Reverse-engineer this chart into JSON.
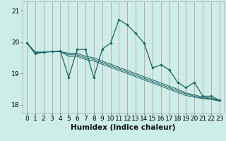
{
  "xlabel": "Humidex (Indice chaleur)",
  "bg_color": "#cceee8",
  "grid_color_v": "#e8b0b0",
  "grid_color_h": "#cceee8",
  "line_color": "#1a6666",
  "marker_color": "#1a6666",
  "x_values": [
    0,
    1,
    2,
    3,
    4,
    5,
    6,
    7,
    8,
    9,
    10,
    11,
    12,
    13,
    14,
    15,
    16,
    17,
    18,
    19,
    20,
    21,
    22,
    23
  ],
  "series_main": [
    19.98,
    19.63,
    19.68,
    19.7,
    19.72,
    18.88,
    19.77,
    19.77,
    18.87,
    19.78,
    19.97,
    20.72,
    20.55,
    20.28,
    19.97,
    19.18,
    19.28,
    19.12,
    18.72,
    18.55,
    18.72,
    18.28,
    18.28,
    18.15
  ],
  "series_trend": [
    [
      19.98,
      19.68,
      19.68,
      19.7,
      19.7,
      19.55,
      19.55,
      19.45,
      19.4,
      19.3,
      19.2,
      19.1,
      19.0,
      18.9,
      18.8,
      18.7,
      18.6,
      18.5,
      18.4,
      18.3,
      18.25,
      18.2,
      18.18,
      18.12
    ],
    [
      19.98,
      19.68,
      19.68,
      19.7,
      19.7,
      19.6,
      19.6,
      19.5,
      19.45,
      19.35,
      19.25,
      19.15,
      19.05,
      18.95,
      18.85,
      18.75,
      18.65,
      18.55,
      18.45,
      18.35,
      18.28,
      18.22,
      18.2,
      18.13
    ],
    [
      19.98,
      19.68,
      19.68,
      19.7,
      19.7,
      19.65,
      19.65,
      19.55,
      19.5,
      19.4,
      19.3,
      19.2,
      19.1,
      19.0,
      18.9,
      18.8,
      18.7,
      18.6,
      18.5,
      18.38,
      18.32,
      18.25,
      18.22,
      18.14
    ]
  ],
  "ylim": [
    17.75,
    21.3
  ],
  "xlim": [
    -0.5,
    23.5
  ],
  "yticks": [
    18,
    19,
    20,
    21
  ],
  "xticks": [
    0,
    1,
    2,
    3,
    4,
    5,
    6,
    7,
    8,
    9,
    10,
    11,
    12,
    13,
    14,
    15,
    16,
    17,
    18,
    19,
    20,
    21,
    22,
    23
  ],
  "tick_fontsize": 6.5,
  "xlabel_fontsize": 7.5,
  "xlabel_fontweight": "bold"
}
